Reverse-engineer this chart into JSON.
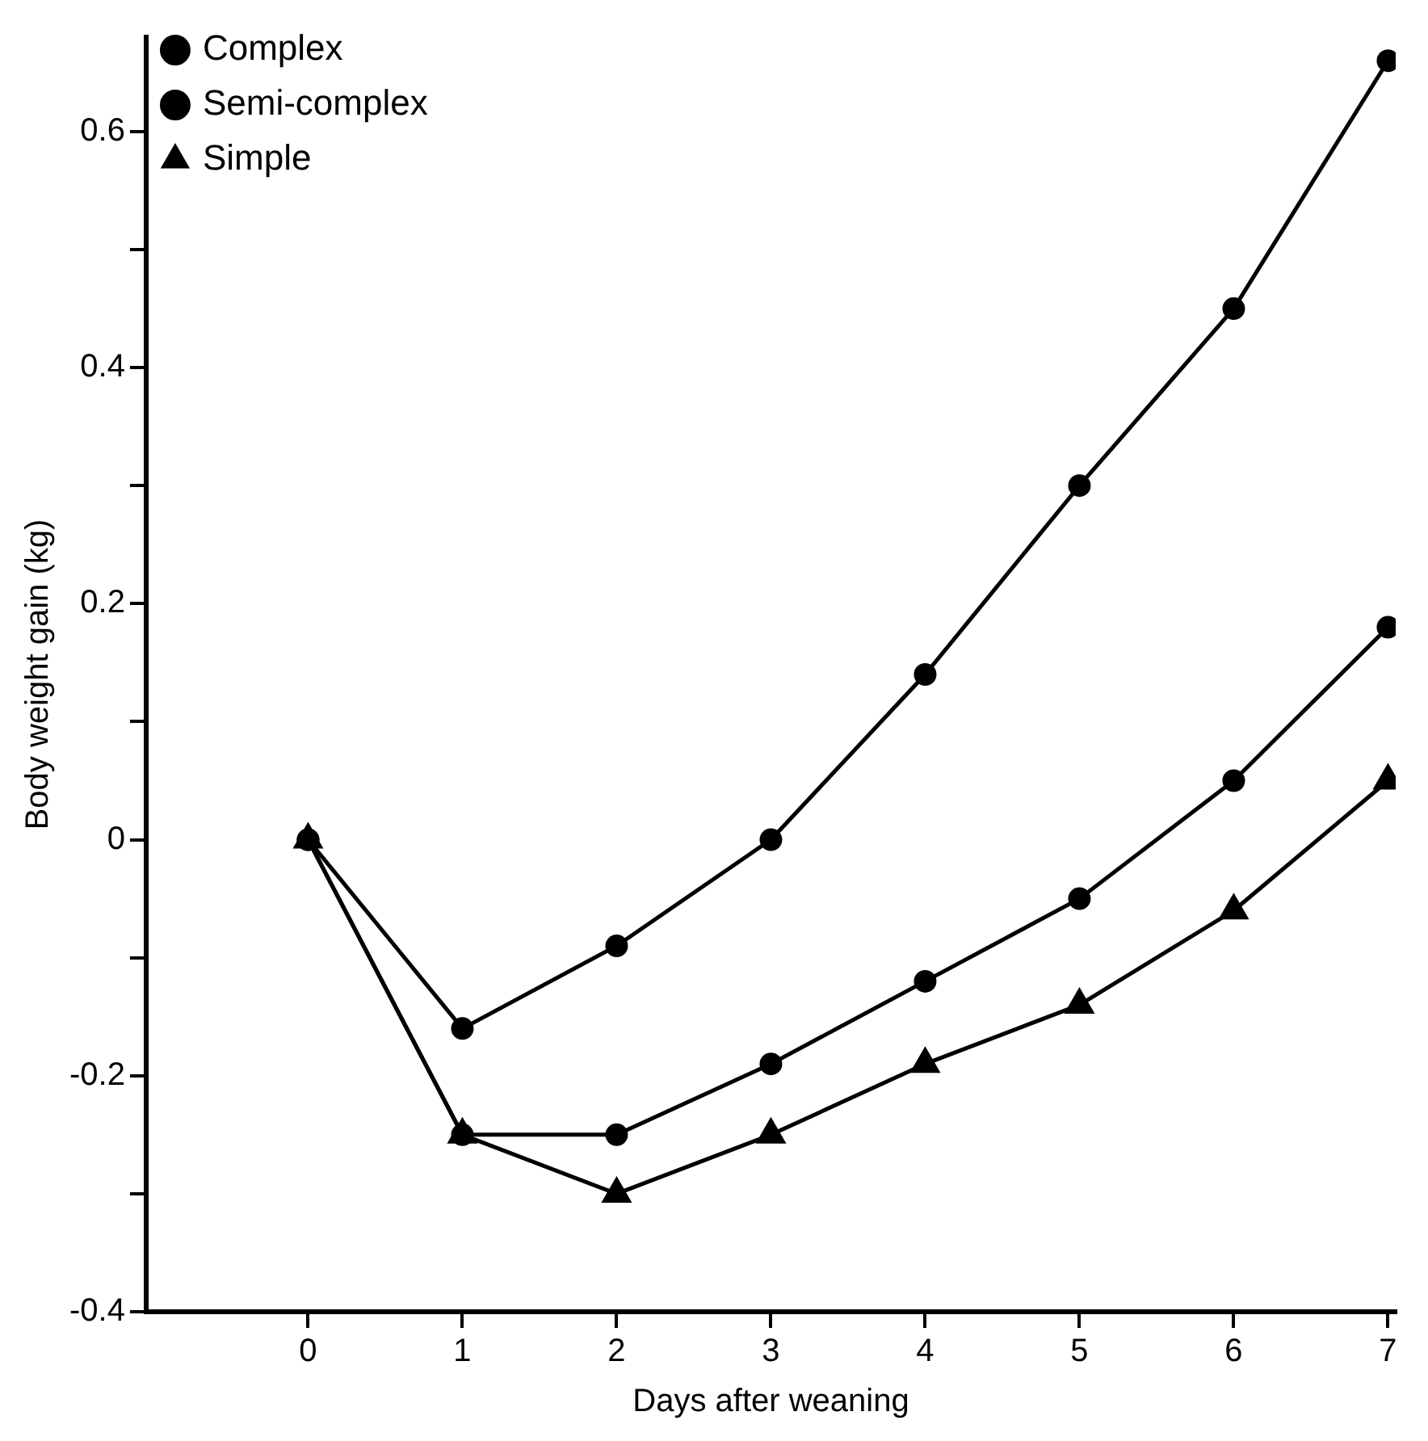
{
  "chart_data": {
    "type": "line",
    "xlabel": "Days after weaning",
    "ylabel": "Body weight gain (kg)",
    "x": [
      0,
      1,
      2,
      3,
      4,
      5,
      6,
      7
    ],
    "xlim": [
      -1.05,
      7.05
    ],
    "xticks": [
      0,
      1,
      2,
      3,
      4,
      5,
      6,
      7
    ],
    "ylim": [
      -0.4,
      0.68
    ],
    "yticks": [
      -0.4,
      {
        "value": -0.3,
        "label": null
      },
      -0.2,
      {
        "value": -0.1,
        "label": null
      },
      0,
      {
        "value": 0.1,
        "label": null
      },
      0.2,
      {
        "value": 0.3,
        "label": null
      },
      0.4,
      {
        "value": 0.5,
        "label": null
      },
      0.6
    ],
    "series": [
      {
        "name": "Complex",
        "color": "#000000",
        "marker": "circle",
        "values": [
          0,
          -0.16,
          -0.09,
          0,
          0.14,
          0.3,
          0.45,
          0.66
        ]
      },
      {
        "name": "Semi-complex",
        "color": "#000000",
        "marker": "circle",
        "values": [
          0,
          -0.25,
          -0.25,
          -0.19,
          -0.12,
          -0.05,
          0.05,
          0.18
        ]
      },
      {
        "name": "Simple",
        "color": "#000000",
        "marker": "triangle",
        "values": [
          0,
          -0.25,
          -0.3,
          -0.25,
          -0.19,
          -0.14,
          -0.06,
          0.05
        ]
      }
    ],
    "grid": false,
    "legend": "top left",
    "line_style": "solid"
  }
}
